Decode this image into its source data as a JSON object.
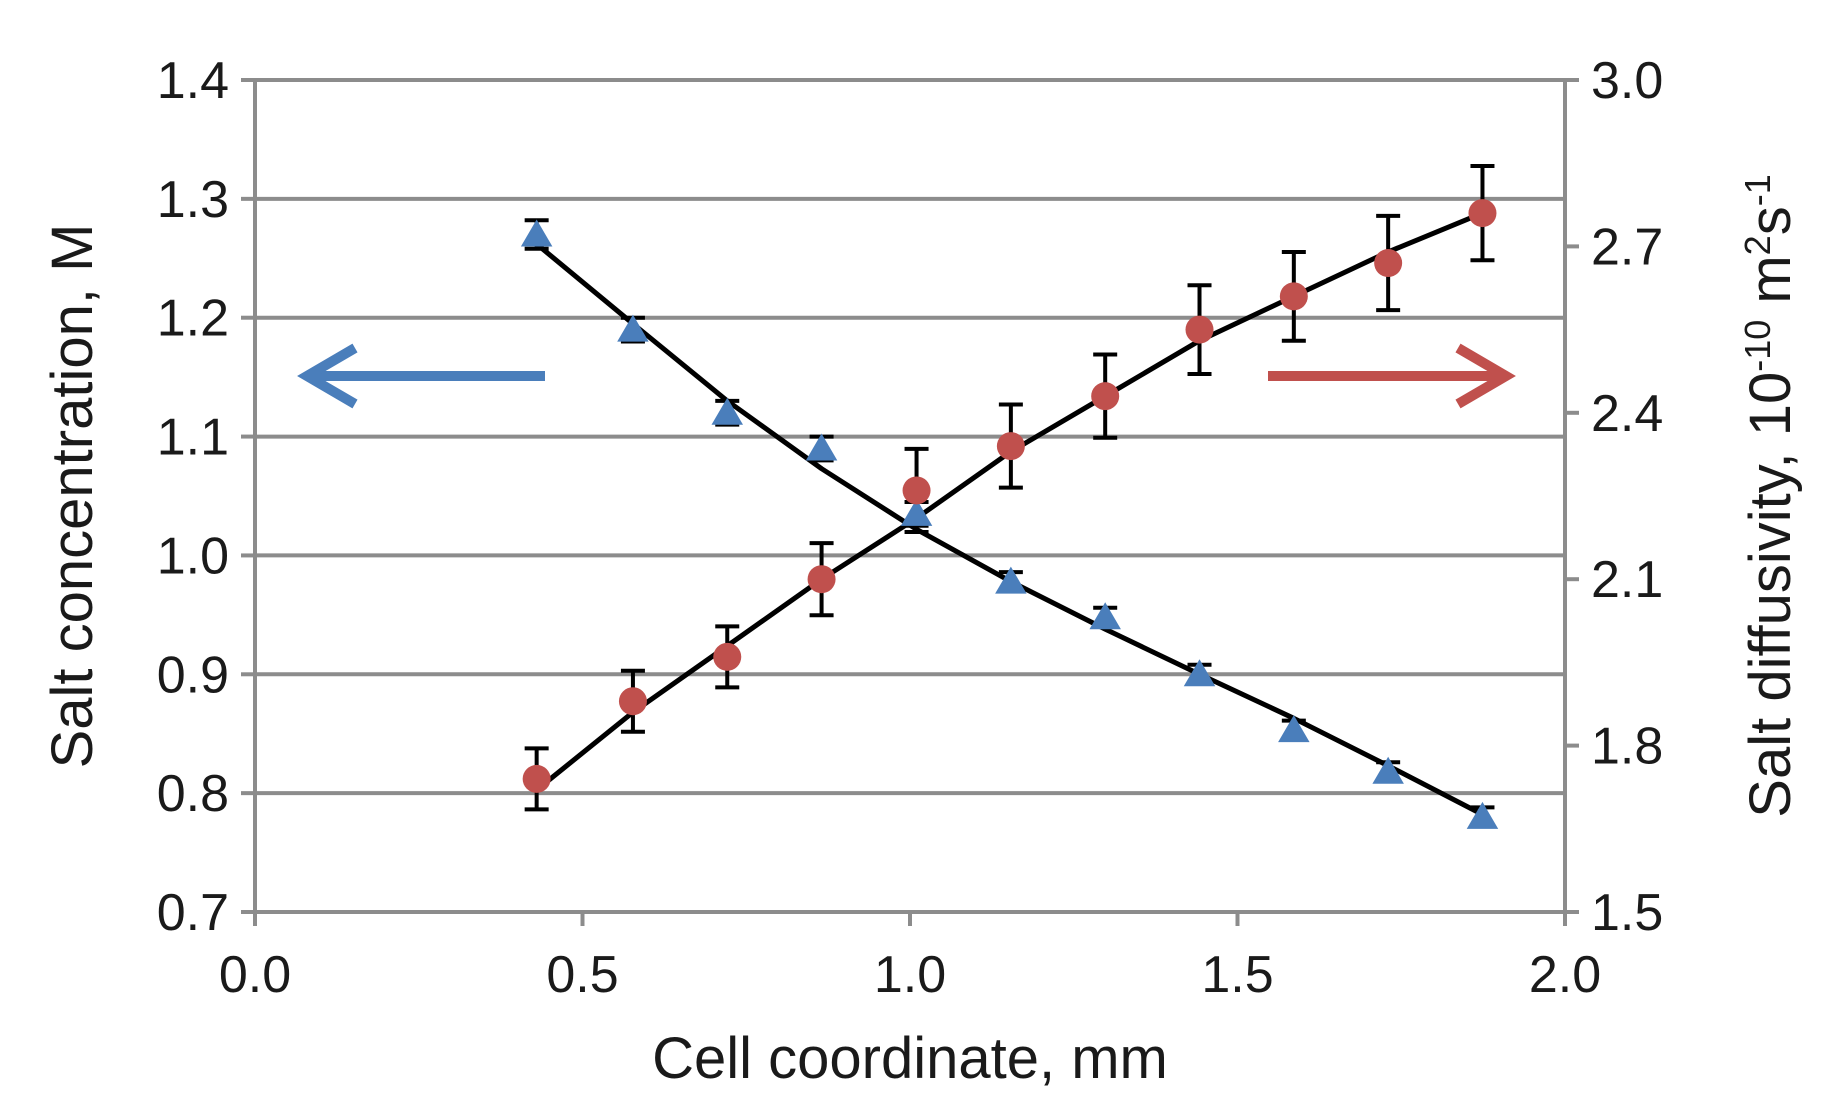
{
  "chart_data": {
    "type": "scatter",
    "title": "",
    "xlabel": "Cell coordinate, mm",
    "ylabel_left": "Salt concentration, M",
    "ylabel_right": {
      "prefix": "Salt diffusivity, 10",
      "exp1": "-10",
      "mid": " m",
      "exp2": "2",
      "mid2": "s",
      "exp3": "-1"
    },
    "xlim": [
      0.0,
      2.0
    ],
    "ylim_left": [
      0.7,
      1.4
    ],
    "ylim_right": [
      1.5,
      3.0
    ],
    "x_ticks": [
      "0.0",
      "0.5",
      "1.0",
      "1.5",
      "2.0"
    ],
    "y_left_ticks": [
      "0.7",
      "0.8",
      "0.9",
      "1.0",
      "1.1",
      "1.2",
      "1.3",
      "1.4"
    ],
    "y_right_ticks": [
      "1.5",
      "1.8",
      "2.1",
      "2.4",
      "2.7",
      "3.0"
    ],
    "grid": true,
    "series": [
      {
        "name": "Salt concentration",
        "axis": "left",
        "marker": "triangle",
        "color": "#4a7ebb",
        "x": [
          0.43,
          0.577,
          0.721,
          0.865,
          1.01,
          1.154,
          1.298,
          1.442,
          1.586,
          1.73,
          1.874
        ],
        "y": [
          1.27,
          1.19,
          1.12,
          1.09,
          1.035,
          0.978,
          0.948,
          0.9,
          0.853,
          0.818,
          0.78
        ],
        "err": [
          0.012,
          0.01,
          0.01,
          0.01,
          0.01,
          0.008,
          0.008,
          0.008,
          0.008,
          0.008,
          0.008
        ],
        "fit": [
          1.262,
          1.195,
          1.13,
          1.073,
          1.022,
          0.978,
          0.938,
          0.9,
          0.863,
          0.823,
          0.782
        ]
      },
      {
        "name": "Salt diffusivity",
        "axis": "right",
        "marker": "circle",
        "color": "#c0504d",
        "x": [
          0.43,
          0.577,
          0.721,
          0.865,
          1.01,
          1.154,
          1.298,
          1.442,
          1.586,
          1.73,
          1.874
        ],
        "y": [
          1.74,
          1.88,
          1.96,
          2.1,
          2.26,
          2.34,
          2.43,
          2.55,
          2.61,
          2.67,
          2.76
        ],
        "err": [
          0.055,
          0.055,
          0.055,
          0.065,
          0.075,
          0.075,
          0.075,
          0.08,
          0.08,
          0.085,
          0.085
        ],
        "fit": [
          1.72,
          1.86,
          1.98,
          2.1,
          2.21,
          2.33,
          2.43,
          2.53,
          2.61,
          2.69,
          2.76
        ]
      }
    ],
    "annotations": [
      {
        "type": "arrow",
        "direction": "left",
        "color": "#4a7ebb",
        "meaning": "left axis"
      },
      {
        "type": "arrow",
        "direction": "right",
        "color": "#c0504d",
        "meaning": "right axis"
      }
    ]
  }
}
